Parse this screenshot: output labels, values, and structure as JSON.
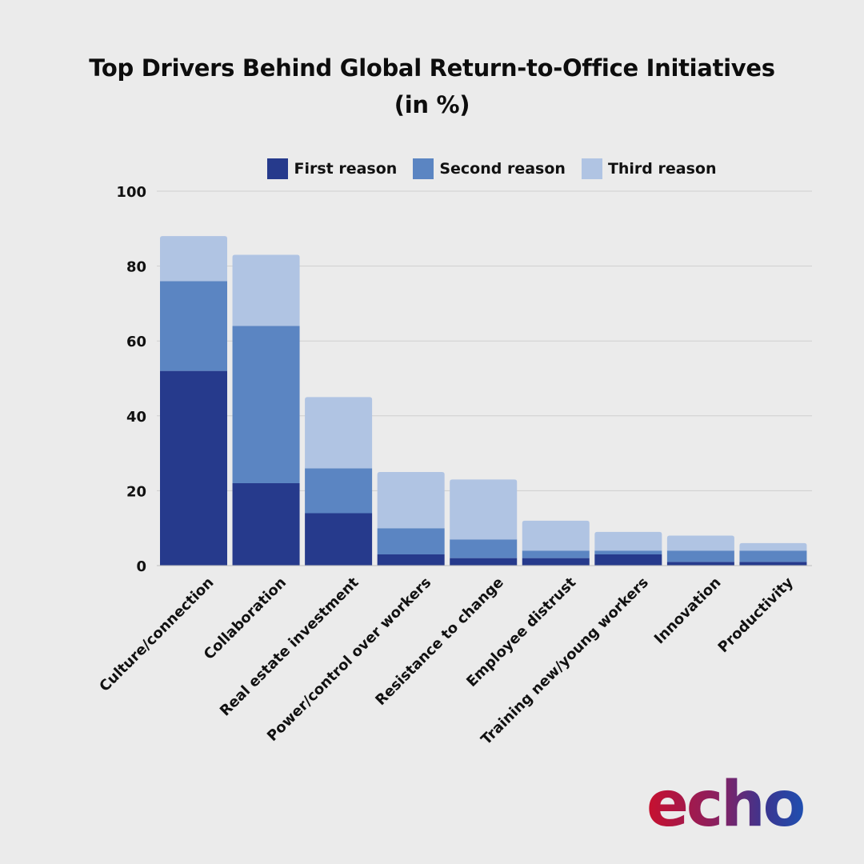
{
  "title_line1": "Top Drivers Behind Global Return-to-Office Initiatives",
  "title_line2": "(in %)",
  "logo_text": "echo",
  "colors": {
    "first": "#263a8c",
    "second": "#5b85c2",
    "third": "#b0c4e3",
    "grid": "#cfcfcf",
    "background": "#ebebeb",
    "logo_gradient": [
      "#c8102e",
      "#7a2a6e",
      "#3b3590",
      "#1f4fb0"
    ]
  },
  "chart_data": {
    "type": "bar",
    "stacked": true,
    "categories": [
      "Culture/connection",
      "Collaboration",
      "Real estate investment",
      "Power/control over workers",
      "Resistance to change",
      "Employee distrust",
      "Training new/young workers",
      "Innovation",
      "Productivity"
    ],
    "series": [
      {
        "name": "First reason",
        "values": [
          52,
          22,
          14,
          3,
          2,
          2,
          3,
          1,
          1
        ]
      },
      {
        "name": "Second reason",
        "values": [
          24,
          42,
          12,
          7,
          5,
          2,
          1,
          3,
          3
        ]
      },
      {
        "name": "Third reason",
        "values": [
          12,
          19,
          19,
          15,
          16,
          8,
          5,
          4,
          2
        ]
      }
    ],
    "ylim": [
      0,
      100
    ],
    "yticks": [
      0,
      20,
      40,
      60,
      80,
      100
    ],
    "grid": true,
    "legend_position": "top"
  }
}
